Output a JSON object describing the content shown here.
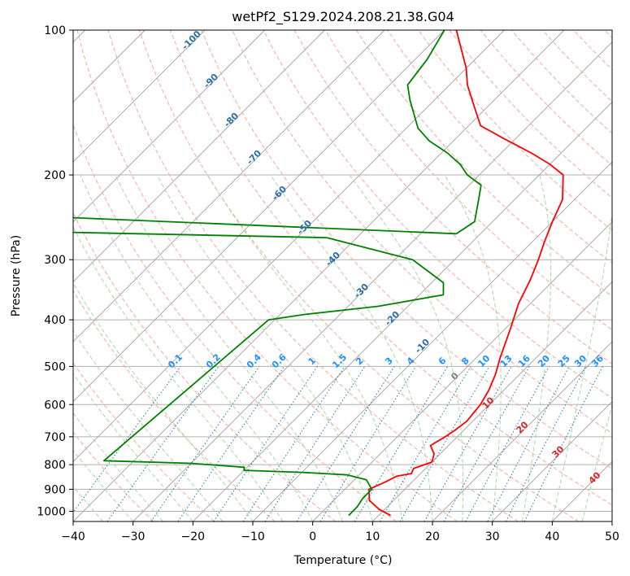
{
  "chart_data": {
    "type": "line",
    "title": "wetPf2_S129.2024.208.21.38.G04",
    "xlabel": "Temperature (°C)",
    "ylabel": "Pressure (hPa)",
    "xlim": [
      -40,
      50
    ],
    "ylim": [
      1050,
      100
    ],
    "y_scale": "log",
    "skew": "skew-T",
    "grid": true,
    "x_ticks": [
      -40,
      -30,
      -20,
      -10,
      0,
      10,
      20,
      30,
      40,
      50
    ],
    "y_ticks": [
      100,
      200,
      300,
      400,
      500,
      600,
      700,
      800,
      900,
      1000
    ],
    "series": [
      {
        "color": "#ff0000",
        "x": [
          12,
          9,
          6,
          4,
          5.5,
          6.5,
          8.5,
          8,
          10,
          9,
          7,
          8,
          8.5,
          9,
          8.5,
          7.5,
          6,
          4,
          1,
          -2,
          -4,
          -6,
          -8,
          -10,
          -12,
          -16,
          -20,
          -25,
          -32,
          -38,
          -42,
          -47,
          -50,
          -58
        ],
        "y": [
          1020,
          990,
          950,
          900,
          870,
          845,
          835,
          815,
          790,
          760,
          730,
          700,
          680,
          650,
          600,
          560,
          520,
          480,
          420,
          370,
          330,
          300,
          275,
          250,
          225,
          200,
          190,
          180,
          168,
          158,
          145,
          130,
          120,
          100
        ]
      },
      {
        "color": "#008000",
        "x": [
          5,
          5,
          4.5,
          4.5,
          2,
          -2,
          -10,
          -20,
          -20.5,
          -30,
          -45,
          -41,
          -36,
          -25,
          -16,
          -18,
          -27,
          -45,
          -110,
          -110,
          -24,
          -23,
          -26,
          -28,
          -32,
          -35,
          -39,
          -44,
          -48,
          -54,
          -57,
          -58,
          -60
        ],
        "y": [
          1020,
          980,
          940,
          900,
          860,
          840,
          830,
          822,
          810,
          795,
          785,
          400,
          390,
          375,
          355,
          335,
          300,
          270,
          260,
          240,
          265,
          250,
          225,
          210,
          200,
          190,
          180,
          170,
          160,
          140,
          130,
          115,
          100
        ]
      }
    ],
    "dry_adiabat_labels": [
      "-100",
      "-90",
      "-80",
      "-70",
      "-60",
      "-50",
      "-40",
      "-30",
      "-20",
      "-10"
    ],
    "moist_adiabat_labels": [
      "0",
      "10",
      "20",
      "30",
      "40"
    ],
    "mixing_ratio_labels": [
      "0.1",
      "0.2",
      "0.4",
      "0.6",
      "1",
      "1.5",
      "2",
      "3",
      "4",
      "6",
      "8",
      "10",
      "13",
      "16",
      "20",
      "25",
      "30",
      "36"
    ],
    "colors": {
      "temperature": "#ff0000",
      "dewpoint": "#008000",
      "dry_adiabat": "#f7a89a",
      "moist_adiabat": "#a8d8a0",
      "mixing_ratio": "#1f77b4",
      "isotherm": "#808080",
      "dry_adiabat_label": "#2b6ea3",
      "moist_adiabat_label": "#d62728",
      "mixing_ratio_label": "#1e90ff"
    }
  }
}
